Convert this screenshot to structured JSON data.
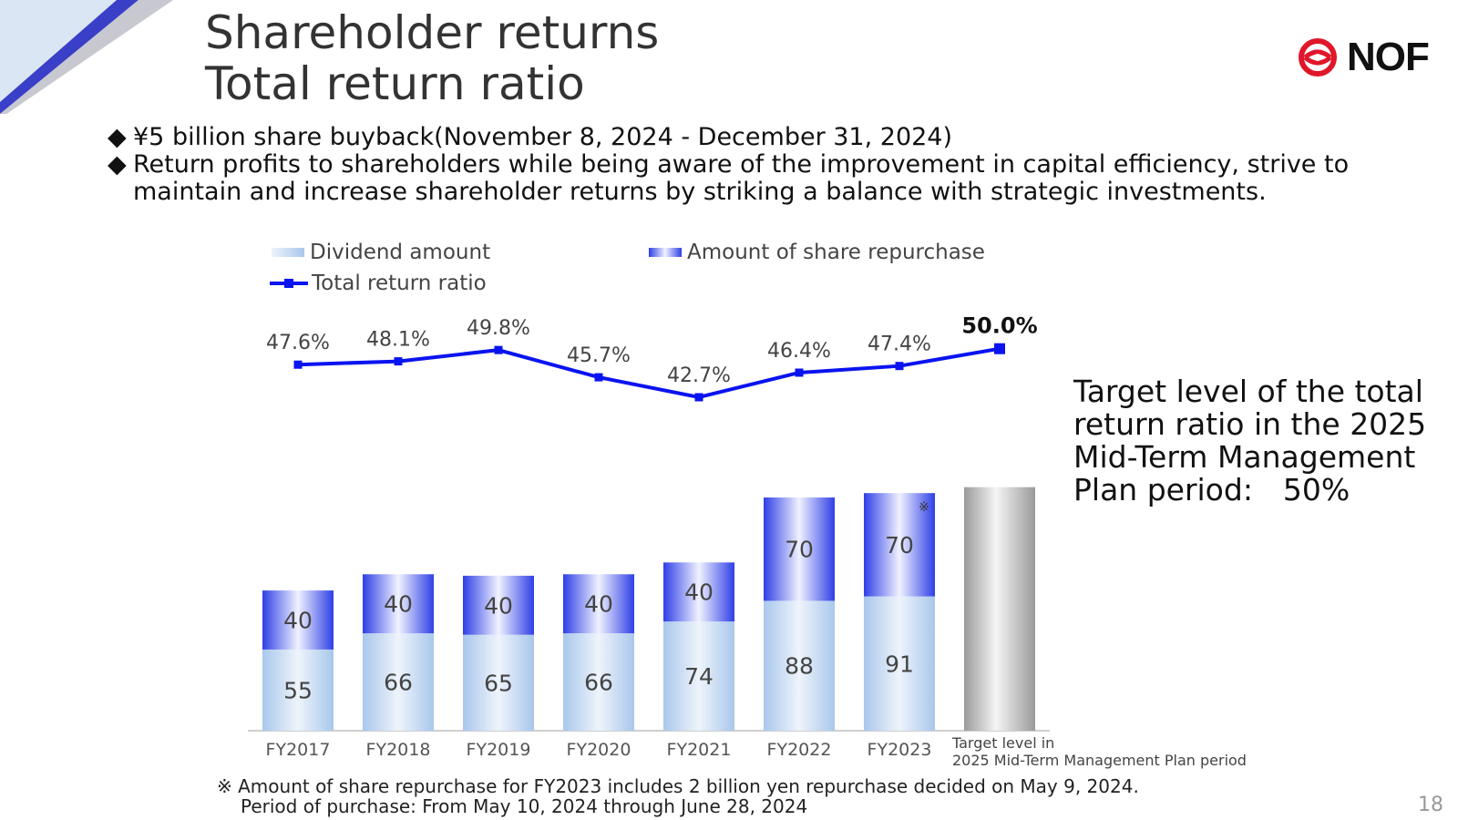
{
  "header": {
    "title_line1": "Shareholder returns",
    "title_line2": "Total return ratio",
    "logo_text": "NOF",
    "page_number": "18"
  },
  "bullets": [
    {
      "mark": "◆",
      "text": "¥5 billion share buyback(November 8, 2024 - December 31, 2024)"
    },
    {
      "mark": "◆",
      "text": "Return profits to shareholders while being aware of the improvement in capital efficiency, strive to maintain and increase shareholder returns by striking a balance with strategic investments."
    }
  ],
  "target_note": "Target level of the total return ratio in the 2025 Mid-Term Management Plan period:　50%",
  "footnote": {
    "line1": "※ Amount of share repurchase for FY2023 includes 2 billion yen repurchase decided on May 9, 2024.",
    "line2": "Period of purchase: From May 10, 2024 through June 28, 2024"
  },
  "colors": {
    "line": "#0a14f0",
    "repurchase_dark": "#2f3fe6",
    "repurchase_light": "#f0f2ff",
    "dividend_dark": "#a9c7ec",
    "dividend_light": "#eef4fb",
    "target_bar": "#9a9a9a",
    "accent_corner": "#3a3fc8"
  },
  "chart_data": {
    "type": "bar",
    "stacked": true,
    "categories": [
      "FY2017",
      "FY2018",
      "FY2019",
      "FY2020",
      "FY2021",
      "FY2022",
      "FY2023",
      "Target level in\n2025 Mid-Term Management Plan period"
    ],
    "category_label_lines": [
      [
        "FY2017"
      ],
      [
        "FY2018"
      ],
      [
        "FY2019"
      ],
      [
        "FY2020"
      ],
      [
        "FY2021"
      ],
      [
        "FY2022"
      ],
      [
        "FY2023"
      ],
      [
        "Target level in",
        "2025 Mid-Term Management Plan period"
      ]
    ],
    "series": [
      {
        "name": "Dividend amount",
        "values": [
          55,
          66,
          65,
          66,
          74,
          88,
          91,
          null
        ]
      },
      {
        "name": "Amount of share repurchase",
        "values": [
          40,
          40,
          40,
          40,
          40,
          70,
          70,
          null
        ]
      }
    ],
    "line_series": {
      "name": "Total return ratio",
      "values": [
        47.6,
        48.1,
        49.8,
        45.7,
        42.7,
        46.4,
        47.4,
        50.0
      ],
      "labels": [
        "47.6%",
        "48.1%",
        "49.8%",
        "45.7%",
        "42.7%",
        "46.4%",
        "47.4%",
        "50.0%"
      ]
    },
    "target_bar": {
      "category_index": 7,
      "approx_total": 165
    },
    "annotations": [
      {
        "category": "FY2023",
        "series": "Amount of share repurchase",
        "text": "※"
      }
    ],
    "grid": false,
    "legend_position": "top"
  }
}
